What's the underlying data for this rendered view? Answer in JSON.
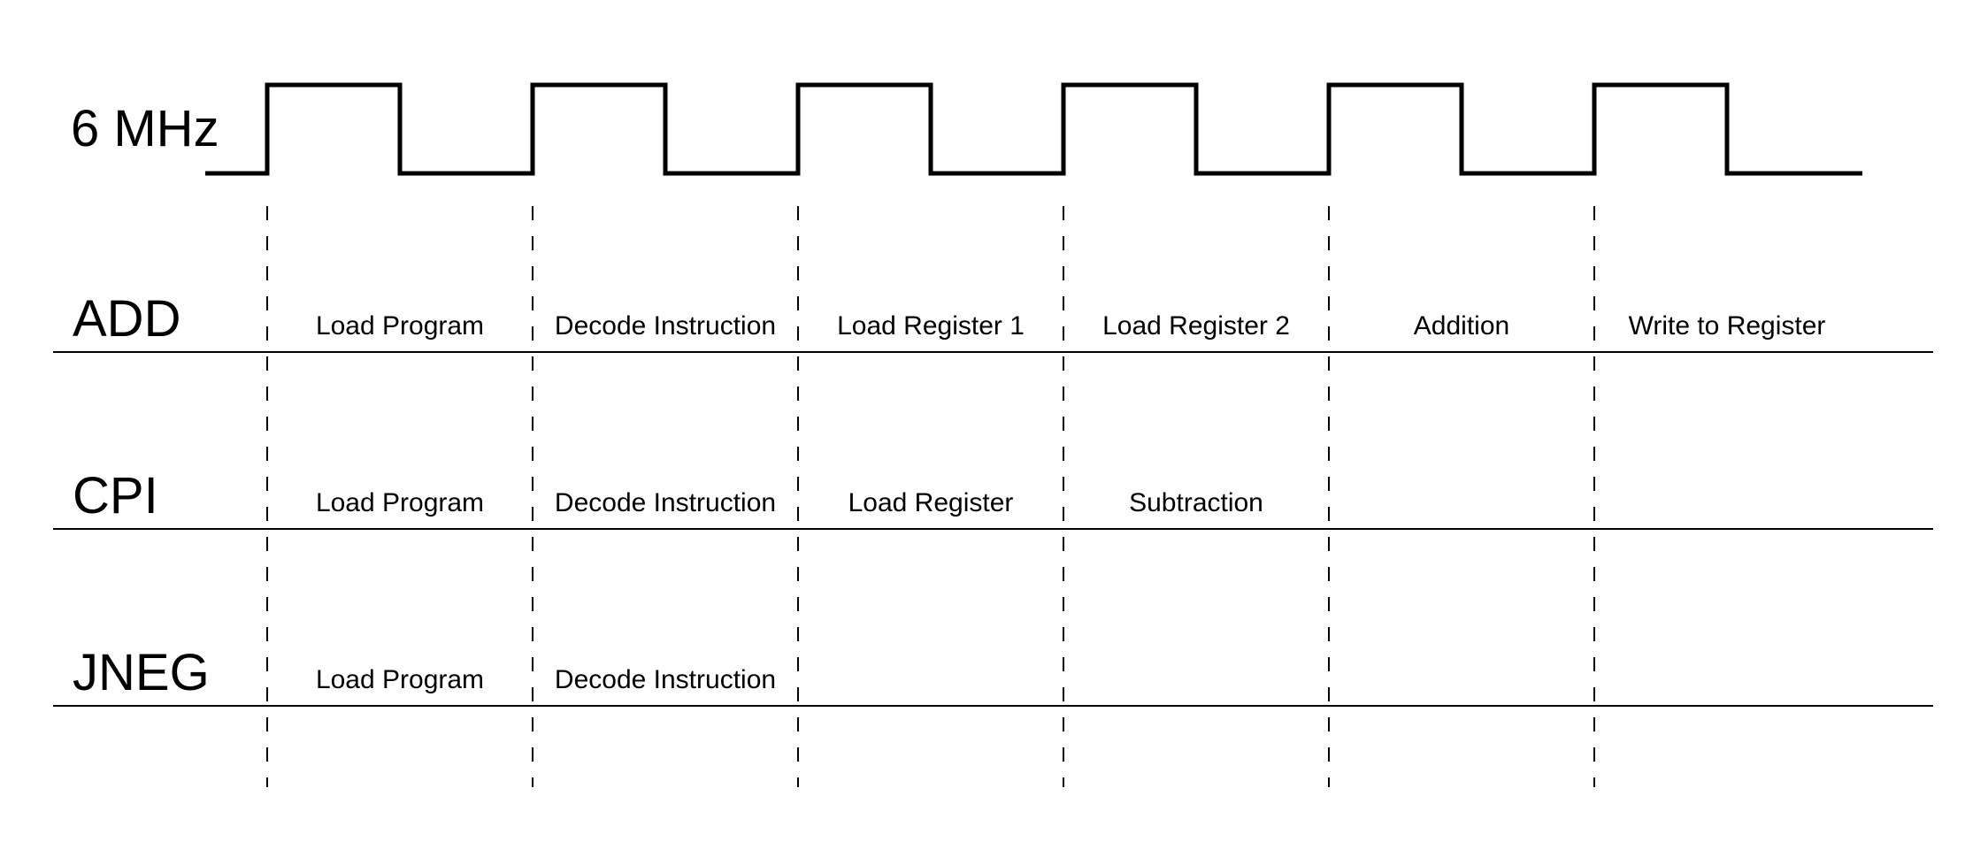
{
  "clock": {
    "label": "6 MHz",
    "cycles": 6
  },
  "instructions": [
    {
      "name": "ADD",
      "steps": [
        "Load Program",
        "Decode Instruction",
        "Load Register 1",
        "Load Register 2",
        "Addition",
        "Write to Register"
      ]
    },
    {
      "name": "CPI",
      "steps": [
        "Load Program",
        "Decode Instruction",
        "Load Register",
        "Subtraction"
      ]
    },
    {
      "name": "JNEG",
      "steps": [
        "Load Program",
        "Decode Instruction"
      ]
    }
  ],
  "colors": {
    "ink": "#000000",
    "background": "#ffffff"
  }
}
